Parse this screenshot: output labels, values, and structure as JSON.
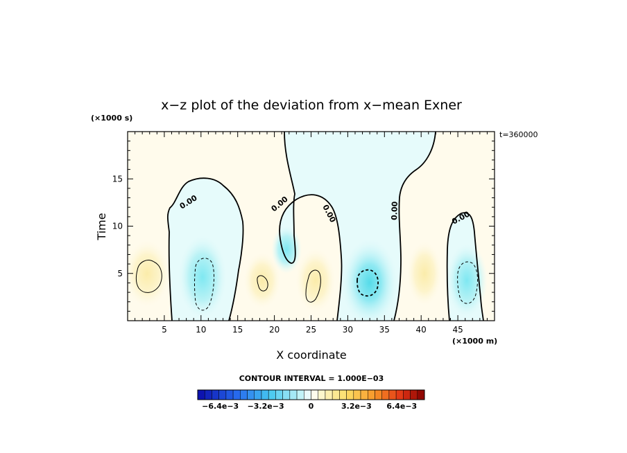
{
  "chart_data": {
    "type": "heatmap",
    "title": "x−z plot of the deviation from x−mean Exner",
    "xlabel": "X coordinate",
    "ylabel": "Time",
    "x_unit": "(×1000 m)",
    "y_unit": "(×1000 s)",
    "time_label": "t=360000",
    "xlim": [
      0,
      50
    ],
    "ylim": [
      0,
      20
    ],
    "x_ticks": [
      5,
      10,
      15,
      20,
      25,
      30,
      35,
      40,
      45
    ],
    "y_ticks": [
      5,
      10,
      15
    ],
    "x_tick_labels": [
      "5",
      "10",
      "15",
      "20",
      "25",
      "30",
      "35",
      "40",
      "45"
    ],
    "y_tick_labels": [
      "5",
      "10",
      "15"
    ],
    "contour_interval_text": "CONTOUR INTERVAL = 1.000E−03",
    "contour_labels": [
      "0.00",
      "0.00",
      "0.00",
      "0.00",
      "0.00"
    ],
    "colorbar": {
      "min": -0.008,
      "max": 0.008,
      "levels": 32,
      "tick_labels": [
        "−6.4e−3",
        "−3.2e−3",
        "0",
        "3.2e−3",
        "6.4e−3"
      ],
      "tick_values": [
        -0.0064,
        -0.0032,
        0,
        0.0032,
        0.0064
      ]
    },
    "features": [
      {
        "kind": "positive",
        "x": 2.5,
        "y": 4.8,
        "value": 0.0012
      },
      {
        "kind": "negative",
        "x": 10.5,
        "y": 4.5,
        "value": -0.0022
      },
      {
        "kind": "positive",
        "x": 18.0,
        "y": 3.8,
        "value": 0.0011
      },
      {
        "kind": "positive",
        "x": 25.5,
        "y": 3.5,
        "value": 0.0013
      },
      {
        "kind": "negative",
        "x": 32.5,
        "y": 3.5,
        "value": -0.0032
      },
      {
        "kind": "positive",
        "x": 40.5,
        "y": 4.5,
        "value": 0.0008
      },
      {
        "kind": "negative",
        "x": 46.0,
        "y": 4.0,
        "value": -0.0024
      }
    ]
  }
}
